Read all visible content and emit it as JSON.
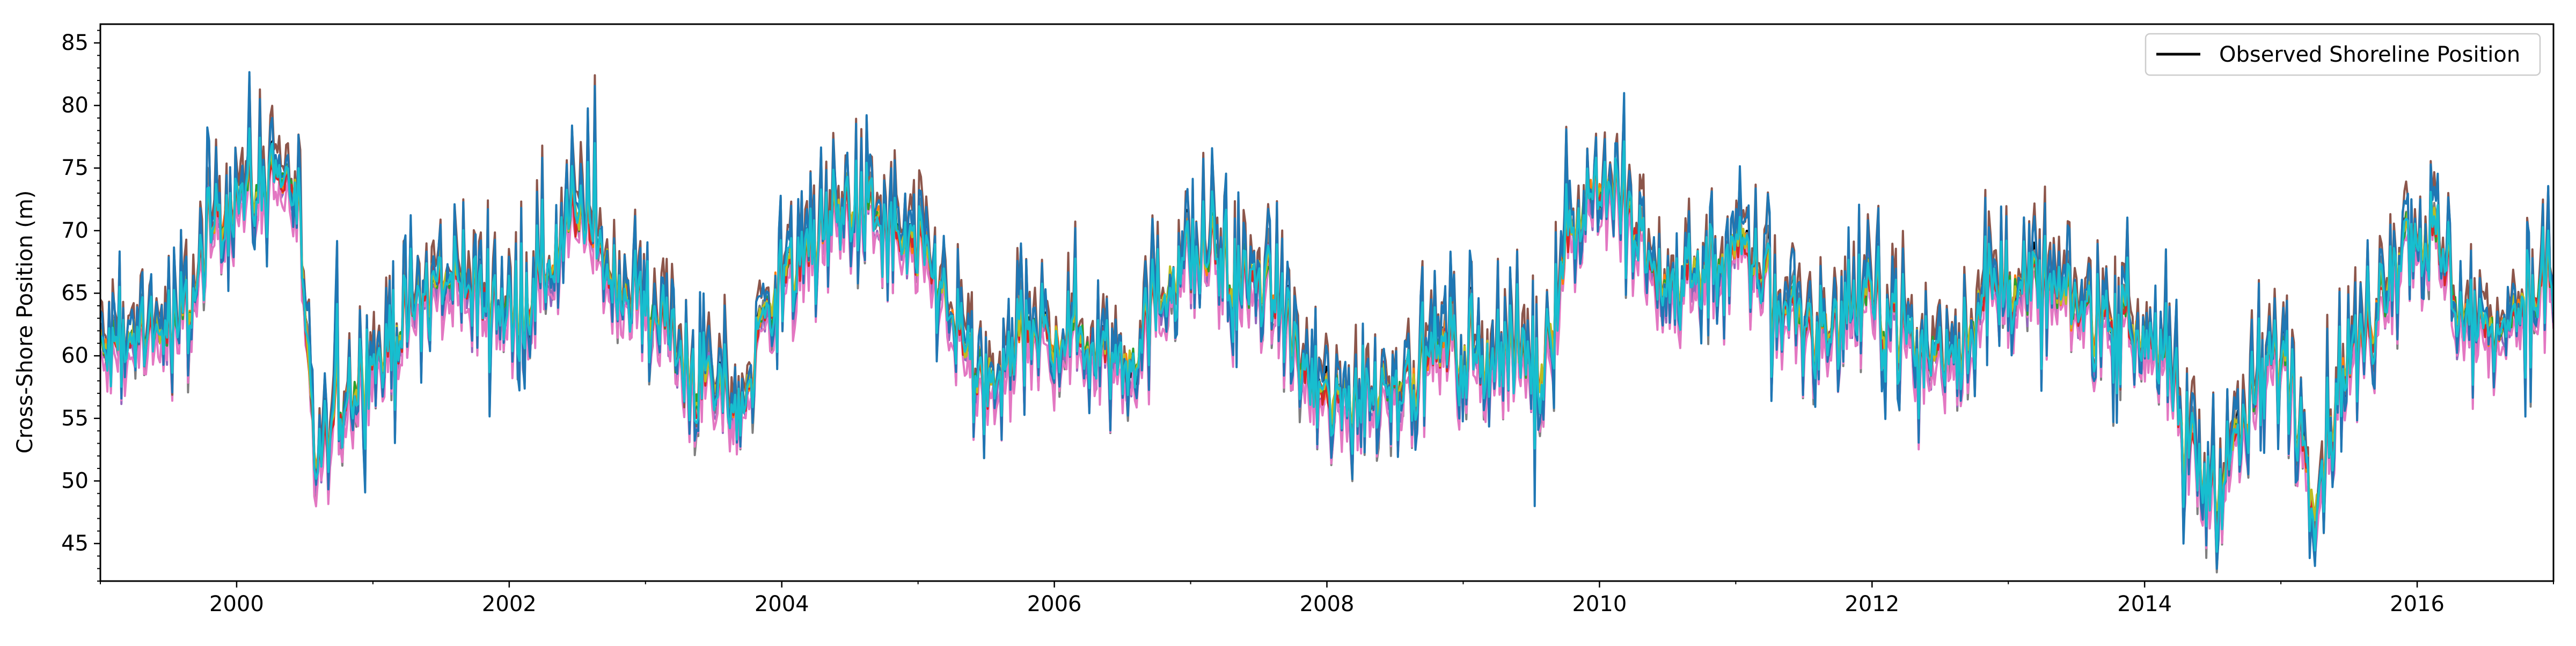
{
  "chart_data": {
    "type": "line",
    "title": "",
    "xlabel": "",
    "ylabel": "Cross-Shore Position (m)",
    "xlim": [
      "1999-01-01",
      "2017-01-01"
    ],
    "ylim": [
      42,
      86.5
    ],
    "xticks": [
      "2000",
      "2002",
      "2004",
      "2006",
      "2008",
      "2010",
      "2012",
      "2014",
      "2016"
    ],
    "yticks": [
      45,
      50,
      55,
      60,
      65,
      70,
      75,
      80,
      85
    ],
    "grid": false,
    "legend": {
      "position": "top-right",
      "entries": [
        "Observed Shoreline Position"
      ]
    },
    "observed_series": {
      "name": "Observed Shoreline Position",
      "color": "#000000",
      "x": [
        "1999-01",
        "1999-07",
        "2000-01",
        "2000-06",
        "2000-08",
        "2001-01",
        "2001-07",
        "2002-01",
        "2002-07",
        "2003-01",
        "2003-06",
        "2003-09",
        "2004-01",
        "2004-07",
        "2005-01",
        "2005-07",
        "2006-01",
        "2006-07",
        "2007-01",
        "2007-07",
        "2008-01",
        "2008-07",
        "2009-01",
        "2009-07",
        "2010-01",
        "2010-07",
        "2011-01",
        "2011-07",
        "2012-01",
        "2012-07",
        "2013-01",
        "2013-07",
        "2014-01",
        "2014-07",
        "2015-01",
        "2015-04",
        "2015-07",
        "2016-01",
        "2016-07",
        "2017-01"
      ],
      "y": [
        60,
        62,
        73,
        74,
        52,
        60,
        66,
        64,
        70,
        64,
        58,
        56,
        66,
        72,
        68,
        58,
        62,
        60,
        68,
        66,
        56,
        58,
        60,
        60,
        74,
        66,
        68,
        62,
        64,
        60,
        66,
        64,
        62,
        50,
        60,
        50,
        60,
        70,
        62,
        66
      ]
    },
    "model_series": [
      {
        "color": "#1f77b4",
        "amplitude": 1.35,
        "offset": 0.6
      },
      {
        "color": "#ff7f0e",
        "amplitude": 0.6,
        "offset": 0.2
      },
      {
        "color": "#2ca02c",
        "amplitude": 0.6,
        "offset": 0.1
      },
      {
        "color": "#d62728",
        "amplitude": 0.6,
        "offset": -0.1
      },
      {
        "color": "#9467bd",
        "amplitude": 0.9,
        "offset": -0.8
      },
      {
        "color": "#8c564b",
        "amplitude": 1.25,
        "offset": 1.4
      },
      {
        "color": "#e377c2",
        "amplitude": 0.9,
        "offset": -1.6
      },
      {
        "color": "#7f7f7f",
        "amplitude": 1.15,
        "offset": -0.4
      },
      {
        "color": "#bcbd22",
        "amplitude": 0.6,
        "offset": 0.3
      },
      {
        "color": "#17becf",
        "amplitude": 0.85,
        "offset": 0.0
      }
    ]
  }
}
